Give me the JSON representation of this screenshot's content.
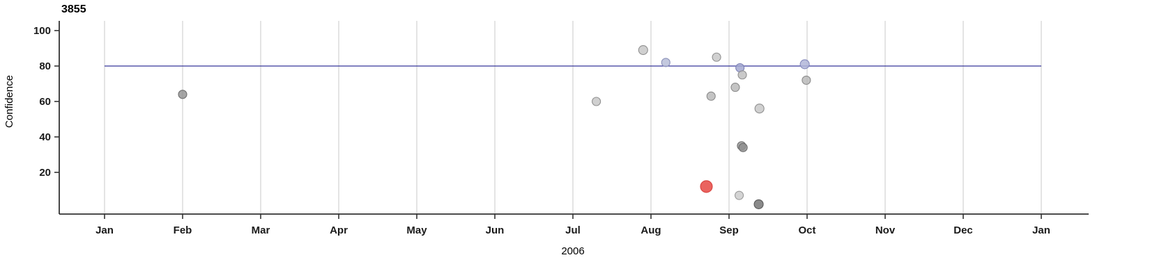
{
  "chart_data": {
    "type": "scatter",
    "title": "3855",
    "xlabel": "2006",
    "ylabel": "Confidence",
    "ylim": [
      0,
      100
    ],
    "xlim_months": [
      0,
      12
    ],
    "grid": "vertical-only",
    "legend": "none",
    "y_ticks": [
      20,
      40,
      60,
      80,
      100
    ],
    "x_tick_labels": [
      "Jan",
      "Feb",
      "Mar",
      "Apr",
      "May",
      "Jun",
      "Jul",
      "Aug",
      "Sep",
      "Oct",
      "Nov",
      "Dec",
      "Jan"
    ],
    "reference_line": {
      "y": 80,
      "color": "#34349b",
      "width": 1.2
    },
    "colors": {
      "gridline": "#d9d9d9",
      "axis": "#333333",
      "gray_point": "#bdbdbd",
      "blue_point": "#a8add2",
      "highlight_point": "#e8524e"
    },
    "points": [
      {
        "x": 1.0,
        "y": 64,
        "fill": "#8f8f8f",
        "stroke": "#6e6e6e",
        "r": 6,
        "opacity": 0.8,
        "highlight": false
      },
      {
        "x": 6.3,
        "y": 60,
        "fill": "#c4c4c4",
        "stroke": "#8f8f8f",
        "r": 6,
        "opacity": 0.8,
        "highlight": false
      },
      {
        "x": 6.9,
        "y": 89,
        "fill": "#c4c4c4",
        "stroke": "#8f8f8f",
        "r": 6.5,
        "opacity": 0.8,
        "highlight": false
      },
      {
        "x": 7.19,
        "y": 82,
        "fill": "#b9bed8",
        "stroke": "#8a90b8",
        "r": 6,
        "opacity": 0.85,
        "highlight": false
      },
      {
        "x": 7.77,
        "y": 63,
        "fill": "#b5b5b5",
        "stroke": "#8a8a8a",
        "r": 6,
        "opacity": 0.8,
        "highlight": false
      },
      {
        "x": 7.84,
        "y": 85,
        "fill": "#c4c4c4",
        "stroke": "#8f8f8f",
        "r": 6,
        "opacity": 0.8,
        "highlight": false
      },
      {
        "x": 8.08,
        "y": 68,
        "fill": "#b5b5b5",
        "stroke": "#8a8a8a",
        "r": 6,
        "opacity": 0.8,
        "highlight": false
      },
      {
        "x": 8.14,
        "y": 79,
        "fill": "#a3a8d0",
        "stroke": "#7d82b5",
        "r": 6,
        "opacity": 0.85,
        "highlight": false
      },
      {
        "x": 8.17,
        "y": 75,
        "fill": "#bcbcbc",
        "stroke": "#8f8f8f",
        "r": 6,
        "opacity": 0.8,
        "highlight": false
      },
      {
        "x": 8.16,
        "y": 35,
        "fill": "#9a9a9a",
        "stroke": "#6e6e6e",
        "r": 6,
        "opacity": 0.85,
        "highlight": false
      },
      {
        "x": 8.18,
        "y": 34,
        "fill": "#8f8f8f",
        "stroke": "#6e6e6e",
        "r": 6,
        "opacity": 0.85,
        "highlight": false
      },
      {
        "x": 8.13,
        "y": 7,
        "fill": "#c9c9c9",
        "stroke": "#9a9a9a",
        "r": 6,
        "opacity": 0.8,
        "highlight": false
      },
      {
        "x": 8.39,
        "y": 56,
        "fill": "#c4c4c4",
        "stroke": "#8f8f8f",
        "r": 6.5,
        "opacity": 0.8,
        "highlight": false
      },
      {
        "x": 8.38,
        "y": 2,
        "fill": "#7d7d7d",
        "stroke": "#5a5a5a",
        "r": 6.5,
        "opacity": 0.9,
        "highlight": false
      },
      {
        "x": 8.97,
        "y": 81,
        "fill": "#b2b6d8",
        "stroke": "#8489bb",
        "r": 6.5,
        "opacity": 0.85,
        "highlight": false
      },
      {
        "x": 8.99,
        "y": 72,
        "fill": "#b5b5b5",
        "stroke": "#8a8a8a",
        "r": 6,
        "opacity": 0.8,
        "highlight": false
      },
      {
        "x": 7.71,
        "y": 12,
        "fill": "#e8524e",
        "stroke": "#d8423e",
        "r": 8.5,
        "opacity": 0.9,
        "highlight": true
      }
    ]
  }
}
